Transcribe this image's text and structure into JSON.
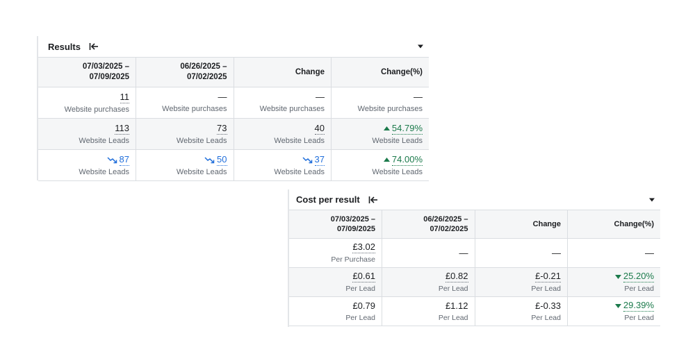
{
  "results": {
    "title": "Results",
    "columns": [
      "07/03/2025 –\n07/09/2025",
      "06/26/2025 –\n07/02/2025",
      "Change",
      "Change(%)"
    ],
    "rows": [
      [
        {
          "value": "11",
          "label": "Website purchases"
        },
        {
          "value": "—",
          "label": "Website purchases"
        },
        {
          "value": "—",
          "label": "Website purchases"
        },
        {
          "value": "—",
          "label": "Website purchases"
        }
      ],
      [
        {
          "value": "113",
          "label": "Website Leads"
        },
        {
          "value": "73",
          "label": "Website Leads"
        },
        {
          "value": "40",
          "label": "Website Leads"
        },
        {
          "value": "54.79%",
          "label": "Website Leads",
          "trend": "up"
        }
      ],
      [
        {
          "value": "87",
          "label": "Website Leads",
          "icon": "trend-down-icon"
        },
        {
          "value": "50",
          "label": "Website Leads",
          "icon": "trend-down-icon"
        },
        {
          "value": "37",
          "label": "Website Leads",
          "icon": "trend-down-icon"
        },
        {
          "value": "74.00%",
          "label": "Website Leads",
          "trend": "up"
        }
      ]
    ]
  },
  "cost_per_result": {
    "title": "Cost per result",
    "columns": [
      "07/03/2025 –\n07/09/2025",
      "06/26/2025 –\n07/02/2025",
      "Change",
      "Change(%)"
    ],
    "rows": [
      [
        {
          "value": "£3.02",
          "label": "Per Purchase"
        },
        {
          "value": "—",
          "label": ""
        },
        {
          "value": "—",
          "label": ""
        },
        {
          "value": "—",
          "label": ""
        }
      ],
      [
        {
          "value": "£0.61",
          "label": "Per Lead"
        },
        {
          "value": "£0.82",
          "label": "Per Lead"
        },
        {
          "value": "£-0.21",
          "label": "Per Lead"
        },
        {
          "value": "25.20%",
          "label": "Per Lead",
          "trend": "down"
        }
      ],
      [
        {
          "value": "£0.79",
          "label": "Per Lead"
        },
        {
          "value": "£1.12",
          "label": "Per Lead"
        },
        {
          "value": "£-0.33",
          "label": "Per Lead"
        },
        {
          "value": "29.39%",
          "label": "Per Lead",
          "trend": "down"
        }
      ]
    ]
  },
  "colors": {
    "link": "#216fdb",
    "positive": "#1b7a4b",
    "header_bg": "#f5f6f7",
    "border": "#dadde1"
  },
  "icons": [
    "collapse-left-icon",
    "dropdown-caret-icon",
    "trend-down-icon",
    "triangle-up-icon",
    "triangle-down-icon"
  ]
}
